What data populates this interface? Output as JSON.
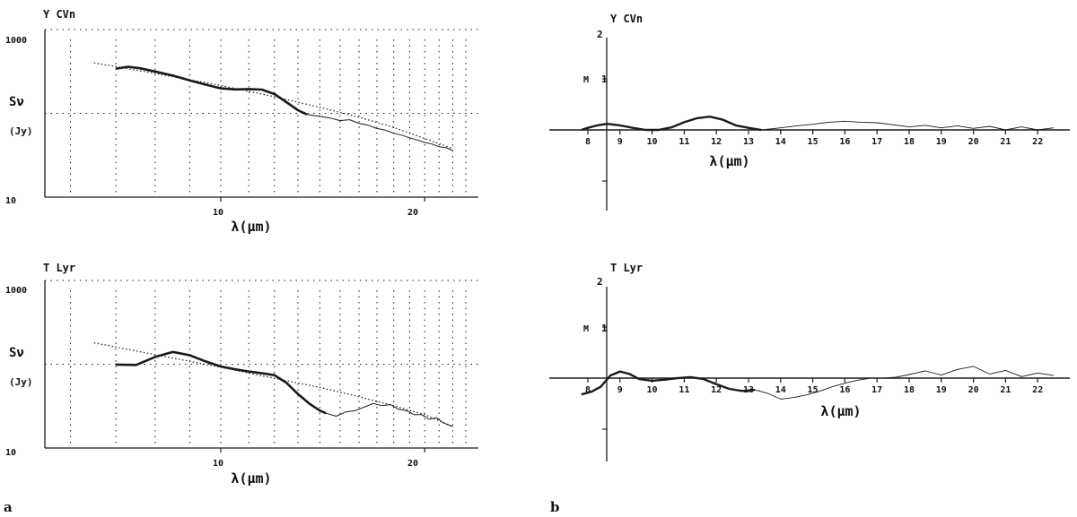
{
  "figure": {
    "panel_letters": [
      "a",
      "b"
    ]
  },
  "chart_data": [
    {
      "id": "a-top",
      "type": "line",
      "title": "Y CVn",
      "ylabel_main": "Sν",
      "ylabel_unit": "(Jy)",
      "xlabel": "λ(μm)",
      "yscale": "log",
      "xscale": "log",
      "ylim": [
        10,
        1000
      ],
      "xlim": [
        5.5,
        24
      ],
      "y_tick_labels": [
        "1000",
        "10"
      ],
      "x_tick_labels": [
        "10",
        "20"
      ],
      "grid": true,
      "series": [
        {
          "style": "observed-thick",
          "x": [
            7.0,
            7.3,
            7.6,
            8.0,
            8.5,
            9.0,
            9.5,
            10.0,
            10.5,
            11.0,
            11.5,
            12.0,
            12.5,
            13.0,
            13.4
          ],
          "y": [
            342,
            360,
            345,
            316,
            282,
            247,
            220,
            199,
            193,
            195,
            192,
            170,
            136,
            109,
            97
          ]
        },
        {
          "style": "observed-thin",
          "x": [
            13.4,
            14.0,
            14.5,
            15.0,
            15.5,
            16.0,
            16.5,
            17.0,
            17.5,
            18.0,
            18.5,
            19.0,
            19.5,
            20.0,
            20.5,
            21.0,
            21.5,
            22.0
          ],
          "y": [
            97,
            92,
            88,
            82,
            84,
            76,
            72,
            66,
            63,
            58,
            55,
            51,
            48,
            45,
            43,
            40,
            39,
            36
          ]
        },
        {
          "style": "model-dotted",
          "x": [
            6.5,
            8.0,
            10.0,
            12.0,
            14.0,
            16.0,
            18.0,
            20.0,
            22.0
          ],
          "y": [
            400,
            300,
            215,
            158,
            118,
            90,
            68,
            50,
            38
          ]
        }
      ]
    },
    {
      "id": "b-top",
      "type": "line",
      "title": "Y CVn",
      "ylabel": "M",
      "xlabel": "λ(μm)",
      "ylim": [
        -2,
        2
      ],
      "xlim": [
        6.8,
        23
      ],
      "y_tick_labels": [
        "2",
        "1"
      ],
      "x_tick_labels": [
        "8",
        "9",
        "10",
        "11",
        "12",
        "13",
        "14",
        "15",
        "16",
        "17",
        "18",
        "19",
        "20",
        "21",
        "22"
      ],
      "series": [
        {
          "style": "observed-thick",
          "x": [
            7.8,
            8.0,
            8.3,
            8.6,
            9.0,
            9.4,
            9.8,
            10.2,
            10.6,
            11.0,
            11.4,
            11.8,
            12.2,
            12.6,
            13.0,
            13.4
          ],
          "y": [
            0.0,
            0.04,
            0.09,
            0.12,
            0.09,
            0.04,
            0.0,
            0.0,
            0.05,
            0.15,
            0.23,
            0.26,
            0.2,
            0.09,
            0.04,
            0.0
          ]
        },
        {
          "style": "observed-thin",
          "x": [
            13.4,
            14.0,
            14.5,
            15.0,
            15.5,
            16.0,
            16.5,
            17.0,
            17.5,
            18.0,
            18.5,
            19.0,
            19.5,
            20.0,
            20.5,
            21.0,
            21.5,
            22.0,
            22.5
          ],
          "y": [
            0.0,
            0.04,
            0.08,
            0.11,
            0.15,
            0.17,
            0.15,
            0.14,
            0.1,
            0.06,
            0.09,
            0.04,
            0.08,
            0.03,
            0.07,
            0.0,
            0.06,
            0.0,
            0.04
          ]
        }
      ]
    },
    {
      "id": "a-bottom",
      "type": "line",
      "title": "T Lyr",
      "ylabel_main": "Sν",
      "ylabel_unit": "(Jy)",
      "xlabel": "λ(μm)",
      "yscale": "log",
      "xscale": "log",
      "ylim": [
        10,
        1000
      ],
      "xlim": [
        5.5,
        24
      ],
      "y_tick_labels": [
        "1000",
        "10"
      ],
      "x_tick_labels": [
        "10",
        "20"
      ],
      "grid": true,
      "series": [
        {
          "style": "observed-thick",
          "x": [
            7.0,
            7.5,
            8.0,
            8.5,
            9.0,
            9.5,
            10.0,
            10.5,
            11.0,
            11.5,
            12.0,
            12.5,
            13.0,
            13.5,
            14.0,
            14.3
          ],
          "y": [
            99,
            98,
            122,
            140,
            128,
            108,
            94,
            87,
            82,
            78,
            74,
            60,
            44,
            34,
            28,
            26
          ]
        },
        {
          "style": "observed-thin",
          "x": [
            14.3,
            14.8,
            15.3,
            15.8,
            16.3,
            16.8,
            17.3,
            17.8,
            18.3,
            18.8,
            19.3,
            19.8,
            20.3,
            20.8,
            21.3,
            22.0
          ],
          "y": [
            26,
            24,
            27,
            28,
            31,
            34,
            32,
            33,
            29,
            28,
            25,
            25,
            22,
            23,
            20,
            18
          ]
        },
        {
          "style": "model-dotted",
          "x": [
            6.5,
            8.0,
            10.0,
            12.0,
            14.0,
            16.0,
            18.0,
            20.0,
            22.0
          ],
          "y": [
            180,
            130,
            92,
            68,
            53,
            41,
            32,
            25,
            18
          ]
        }
      ]
    },
    {
      "id": "b-bottom",
      "type": "line",
      "title": "T Lyr",
      "ylabel": "M",
      "xlabel": "λ(μm)",
      "ylim": [
        -2,
        2
      ],
      "xlim": [
        6.8,
        23
      ],
      "y_tick_labels": [
        "2",
        "1"
      ],
      "x_tick_labels": [
        "8",
        "9",
        "10",
        "11",
        "12",
        "13",
        "14",
        "15",
        "16",
        "17",
        "18",
        "19",
        "20",
        "21",
        "22"
      ],
      "series": [
        {
          "style": "observed-thick",
          "x": [
            7.8,
            8.1,
            8.4,
            8.7,
            9.0,
            9.3,
            9.6,
            10.0,
            10.4,
            10.8,
            11.2,
            11.6,
            12.0,
            12.4,
            12.8,
            13.2
          ],
          "y": [
            -0.32,
            -0.27,
            -0.17,
            0.05,
            0.13,
            0.08,
            -0.02,
            -0.05,
            -0.03,
            0.0,
            0.02,
            -0.02,
            -0.12,
            -0.21,
            -0.25,
            -0.23
          ]
        },
        {
          "style": "observed-thin",
          "x": [
            13.2,
            13.6,
            14.0,
            14.4,
            14.8,
            15.2,
            15.6,
            16.0,
            16.4,
            16.8,
            17.2,
            17.6,
            18.0,
            18.5,
            19.0,
            19.5,
            20.0,
            20.5,
            21.0,
            21.5,
            22.0,
            22.5
          ],
          "y": [
            -0.23,
            -0.3,
            -0.41,
            -0.38,
            -0.33,
            -0.26,
            -0.17,
            -0.1,
            -0.04,
            0.0,
            0.0,
            0.02,
            0.07,
            0.14,
            0.06,
            0.17,
            0.23,
            0.08,
            0.15,
            0.03,
            0.1,
            0.05
          ]
        }
      ]
    }
  ]
}
